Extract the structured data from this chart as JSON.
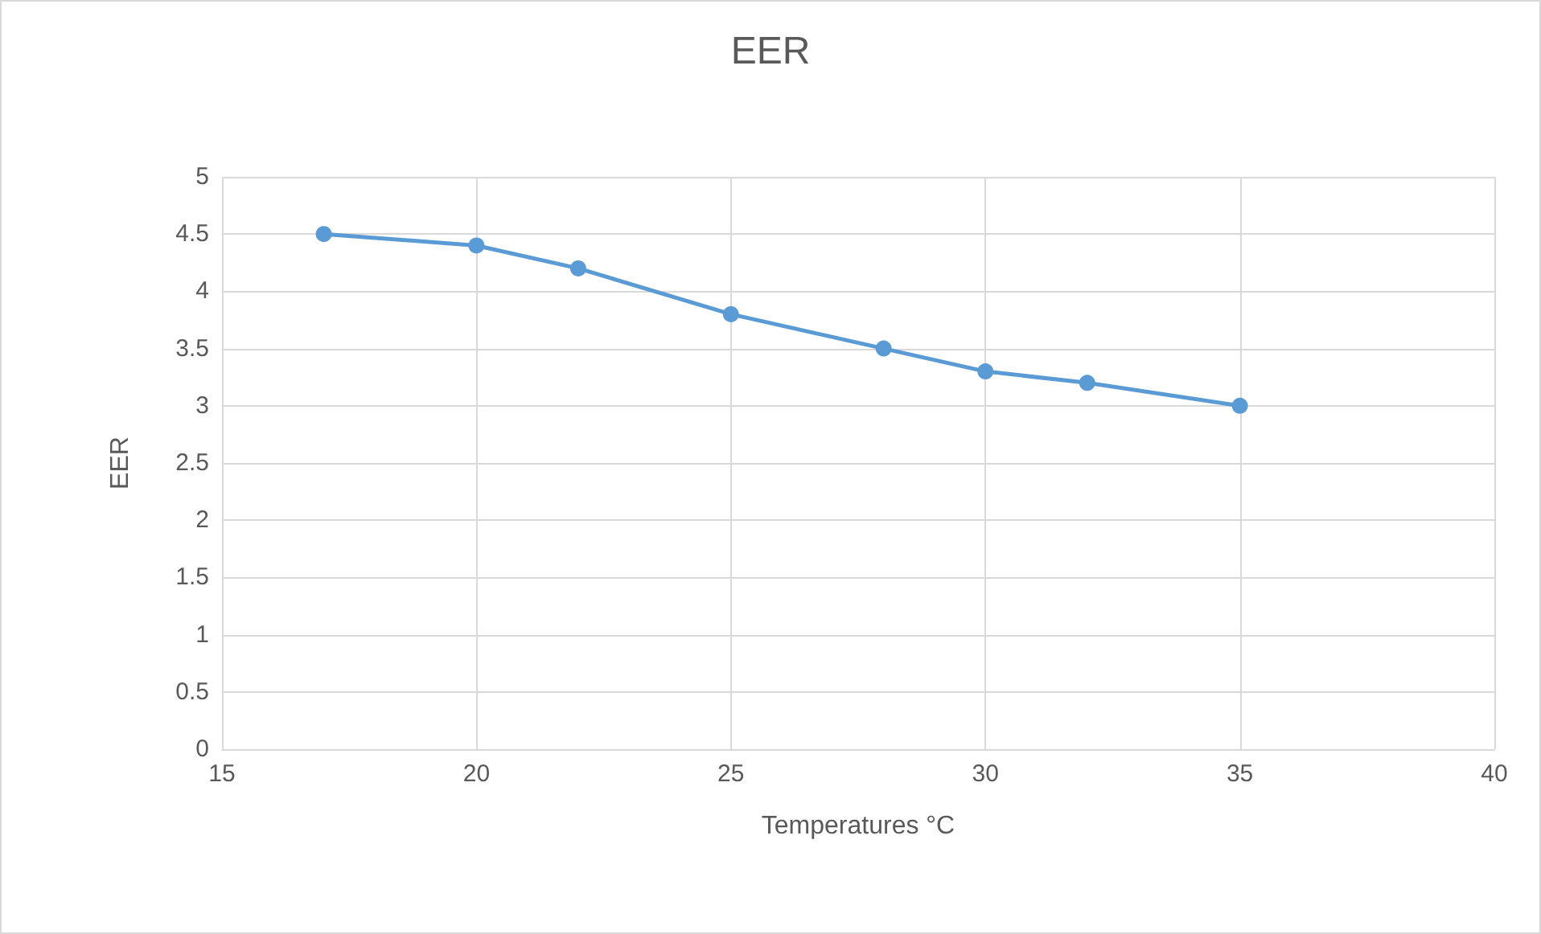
{
  "chart_data": {
    "type": "line",
    "title": "EER",
    "xlabel": "Temperatures °C",
    "ylabel": "EER",
    "x": [
      17,
      20,
      22,
      25,
      28,
      30,
      32,
      35
    ],
    "series": [
      {
        "color": "#5b9bd5",
        "values": [
          4.5,
          4.4,
          4.2,
          3.8,
          3.5,
          3.3,
          3.2,
          3.0
        ]
      }
    ],
    "xlim": [
      15,
      40
    ],
    "xticks": [
      15,
      20,
      25,
      30,
      35,
      40
    ],
    "ylim": [
      0,
      5
    ],
    "yticks": [
      0,
      0.5,
      1,
      1.5,
      2,
      2.5,
      3,
      3.5,
      4,
      4.5,
      5
    ],
    "grid": true,
    "marker": "circle",
    "line_style": "solid"
  }
}
